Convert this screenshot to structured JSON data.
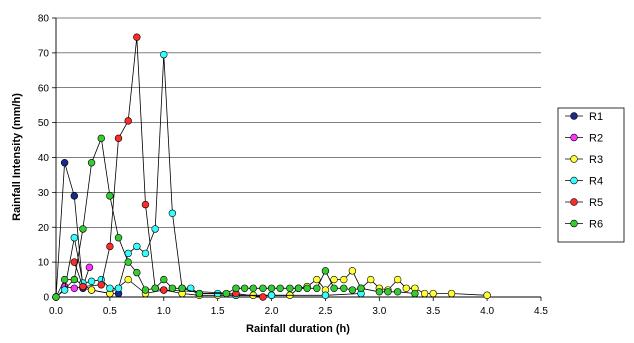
{
  "chart_data": {
    "type": "line",
    "title": "",
    "xlabel": "Rainfall duration (h)",
    "ylabel": "Rainfall Intensity (mm/h)",
    "xlim": [
      0,
      4.5
    ],
    "ylim": [
      0,
      80
    ],
    "xticks": [
      "0.0",
      "0.5",
      "1.0",
      "1.5",
      "2.0",
      "2.5",
      "3.0",
      "3.5",
      "4.0",
      "4.5"
    ],
    "yticks": [
      "0",
      "10",
      "20",
      "30",
      "40",
      "50",
      "60",
      "70",
      "80"
    ],
    "grid": "horizontal",
    "legend_position": "right",
    "series": [
      {
        "name": "R1",
        "color": "#1a2a8c",
        "points": [
          [
            0.0,
            0.0
          ],
          [
            0.08,
            38.5
          ],
          [
            0.17,
            29.0
          ],
          [
            0.25,
            2.5
          ],
          [
            0.33,
            2.0
          ],
          [
            0.5,
            1.0
          ],
          [
            0.58,
            1.0
          ]
        ]
      },
      {
        "name": "R2",
        "color": "#ff33ff",
        "points": [
          [
            0.08,
            3.0
          ],
          [
            0.17,
            2.5
          ],
          [
            0.25,
            3.0
          ],
          [
            0.31,
            8.5
          ]
        ]
      },
      {
        "name": "R3",
        "color": "#ffff33",
        "points": [
          [
            0.0,
            0.0
          ],
          [
            0.17,
            5.0
          ],
          [
            0.33,
            2.0
          ],
          [
            0.5,
            1.0
          ],
          [
            0.67,
            5.0
          ],
          [
            0.83,
            1.0
          ],
          [
            1.0,
            2.0
          ],
          [
            1.17,
            1.0
          ],
          [
            1.33,
            0.5
          ],
          [
            1.5,
            0.5
          ],
          [
            1.67,
            0.5
          ],
          [
            1.83,
            0.5
          ],
          [
            2.0,
            0.5
          ],
          [
            2.17,
            0.5
          ],
          [
            2.25,
            2.5
          ],
          [
            2.33,
            3.0
          ],
          [
            2.42,
            5.0
          ],
          [
            2.5,
            2.0
          ],
          [
            2.58,
            5.0
          ],
          [
            2.67,
            5.0
          ],
          [
            2.75,
            7.5
          ],
          [
            2.83,
            2.5
          ],
          [
            2.92,
            5.0
          ],
          [
            3.0,
            2.5
          ],
          [
            3.08,
            2.0
          ],
          [
            3.17,
            5.0
          ],
          [
            3.25,
            2.5
          ],
          [
            3.33,
            2.5
          ],
          [
            3.42,
            1.0
          ],
          [
            3.5,
            1.0
          ],
          [
            3.67,
            1.0
          ],
          [
            4.0,
            0.5
          ]
        ]
      },
      {
        "name": "R4",
        "color": "#33ffff",
        "points": [
          [
            0.0,
            0.0
          ],
          [
            0.08,
            2.0
          ],
          [
            0.17,
            17.0
          ],
          [
            0.25,
            4.0
          ],
          [
            0.33,
            4.5
          ],
          [
            0.42,
            5.0
          ],
          [
            0.5,
            2.5
          ],
          [
            0.58,
            2.5
          ],
          [
            0.67,
            12.5
          ],
          [
            0.75,
            14.5
          ],
          [
            0.83,
            12.5
          ],
          [
            0.92,
            19.5
          ],
          [
            1.0,
            69.5
          ],
          [
            1.08,
            24.0
          ],
          [
            1.17,
            2.5
          ],
          [
            1.25,
            2.5
          ],
          [
            1.33,
            1.0
          ],
          [
            1.5,
            1.0
          ],
          [
            1.67,
            0.5
          ],
          [
            2.0,
            0.5
          ],
          [
            2.5,
            0.5
          ],
          [
            2.83,
            1.0
          ]
        ]
      },
      {
        "name": "R5",
        "color": "#ff2a2a",
        "points": [
          [
            0.17,
            10.0
          ],
          [
            0.25,
            3.0
          ],
          [
            0.42,
            3.5
          ],
          [
            0.5,
            14.5
          ],
          [
            0.58,
            45.5
          ],
          [
            0.67,
            50.5
          ],
          [
            0.75,
            74.5
          ],
          [
            0.83,
            26.5
          ],
          [
            0.92,
            2.5
          ],
          [
            1.0,
            2.0
          ],
          [
            1.67,
            1.0
          ],
          [
            1.92,
            0.0
          ]
        ]
      },
      {
        "name": "R6",
        "color": "#33cc33",
        "points": [
          [
            0.0,
            0.0
          ],
          [
            0.08,
            5.0
          ],
          [
            0.17,
            5.0
          ],
          [
            0.25,
            19.5
          ],
          [
            0.33,
            38.5
          ],
          [
            0.42,
            45.5
          ],
          [
            0.5,
            29.0
          ],
          [
            0.58,
            17.0
          ],
          [
            0.67,
            10.0
          ],
          [
            0.75,
            7.0
          ],
          [
            0.83,
            2.0
          ],
          [
            0.92,
            2.5
          ],
          [
            1.0,
            5.0
          ],
          [
            1.08,
            2.5
          ],
          [
            1.17,
            2.5
          ],
          [
            1.33,
            1.0
          ],
          [
            1.58,
            1.0
          ],
          [
            1.67,
            2.5
          ],
          [
            1.75,
            2.5
          ],
          [
            1.83,
            2.5
          ],
          [
            1.92,
            2.5
          ],
          [
            2.0,
            2.5
          ],
          [
            2.08,
            2.5
          ],
          [
            2.17,
            2.5
          ],
          [
            2.25,
            2.5
          ],
          [
            2.33,
            2.5
          ],
          [
            2.42,
            2.5
          ],
          [
            2.5,
            7.5
          ],
          [
            2.58,
            2.5
          ],
          [
            2.67,
            2.5
          ],
          [
            2.75,
            2.0
          ],
          [
            2.83,
            2.5
          ],
          [
            3.0,
            1.5
          ],
          [
            3.08,
            1.5
          ],
          [
            3.17,
            1.5
          ],
          [
            3.33,
            1.0
          ]
        ]
      }
    ]
  }
}
